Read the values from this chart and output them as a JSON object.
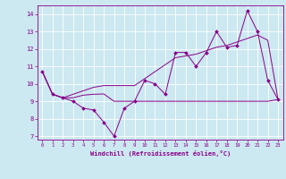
{
  "xlabel": "Windchill (Refroidissement éolien,°C)",
  "background_color": "#cce8f0",
  "line_color": "#880088",
  "x_data": [
    0,
    1,
    2,
    3,
    4,
    5,
    6,
    7,
    8,
    9,
    10,
    11,
    12,
    13,
    14,
    15,
    16,
    17,
    18,
    19,
    20,
    21,
    22,
    23
  ],
  "y_data1": [
    10.7,
    9.4,
    9.2,
    9.0,
    8.6,
    8.5,
    7.8,
    7.0,
    8.6,
    9.0,
    10.2,
    10.0,
    9.4,
    11.8,
    11.8,
    11.0,
    11.8,
    13.0,
    12.1,
    12.2,
    14.2,
    13.0,
    10.2,
    9.1
  ],
  "y_data2": [
    10.7,
    9.4,
    9.2,
    9.2,
    9.35,
    9.4,
    9.42,
    9.0,
    9.0,
    9.0,
    9.0,
    9.0,
    9.0,
    9.0,
    9.0,
    9.0,
    9.0,
    9.0,
    9.0,
    9.0,
    9.0,
    9.0,
    9.0,
    9.1
  ],
  "y_data3": [
    10.7,
    9.4,
    9.2,
    9.4,
    9.6,
    9.8,
    9.9,
    9.9,
    9.9,
    9.9,
    10.3,
    10.7,
    11.1,
    11.5,
    11.6,
    11.7,
    11.9,
    12.1,
    12.2,
    12.4,
    12.6,
    12.8,
    12.5,
    9.1
  ],
  "ylim": [
    6.8,
    14.5
  ],
  "xlim": [
    -0.5,
    23.5
  ],
  "yticks": [
    7,
    8,
    9,
    10,
    11,
    12,
    13,
    14
  ],
  "xticks": [
    0,
    1,
    2,
    3,
    4,
    5,
    6,
    7,
    8,
    9,
    10,
    11,
    12,
    13,
    14,
    15,
    16,
    17,
    18,
    19,
    20,
    21,
    22,
    23
  ]
}
